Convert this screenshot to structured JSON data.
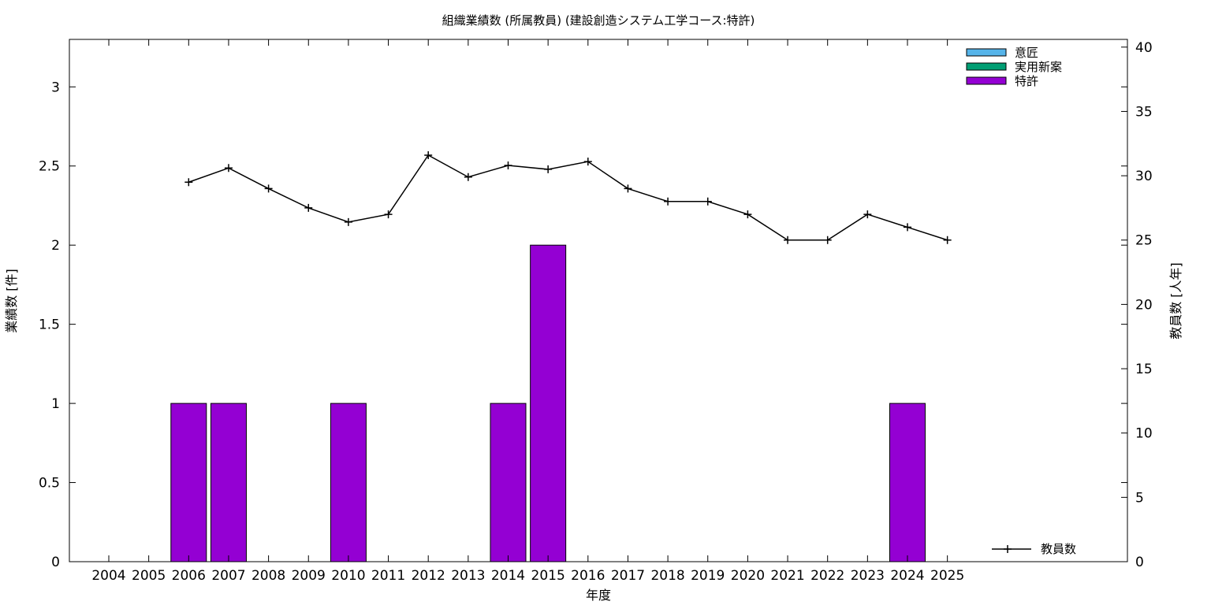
{
  "chart_data": {
    "type": "bar",
    "title": "組織業績数 (所属教員) (建設創造システム工学コース:特許)",
    "xlabel": "年度",
    "ylabel": "業績数 [件]",
    "y2label": "教員数 [人年]",
    "categories": [
      "2004",
      "2005",
      "2006",
      "2007",
      "2008",
      "2009",
      "2010",
      "2011",
      "2012",
      "2013",
      "2014",
      "2015",
      "2016",
      "2017",
      "2018",
      "2019",
      "2020",
      "2021",
      "2022",
      "2023",
      "2024",
      "2025"
    ],
    "ylim": [
      0,
      3.3
    ],
    "y2lim": [
      0,
      40.6
    ],
    "yticks": [
      "0",
      "0.5",
      "1",
      "1.5",
      "2",
      "2.5",
      "3"
    ],
    "y2ticks": [
      "0",
      "5",
      "10",
      "15",
      "20",
      "25",
      "30",
      "35",
      "40"
    ],
    "series": [
      {
        "name": "意匠",
        "type": "bar",
        "color": "#56b4e9",
        "values": [
          0,
          0,
          0,
          0,
          0,
          0,
          0,
          0,
          0,
          0,
          0,
          0,
          0,
          0,
          0,
          0,
          0,
          0,
          0,
          0,
          0,
          0
        ]
      },
      {
        "name": "実用新案",
        "type": "bar",
        "color": "#009e73",
        "values": [
          0,
          0,
          0,
          0,
          0,
          0,
          0,
          0,
          0,
          0,
          0,
          0,
          0,
          0,
          0,
          0,
          0,
          0,
          0,
          0,
          0,
          0
        ]
      },
      {
        "name": "特許",
        "type": "bar",
        "color": "#9400d3",
        "values": [
          0,
          0,
          1,
          1,
          0,
          0,
          1,
          0,
          0,
          0,
          1,
          2,
          0,
          0,
          0,
          0,
          0,
          0,
          0,
          0,
          1,
          0
        ]
      },
      {
        "name": "教員数",
        "type": "line",
        "axis": "right",
        "color": "#000000",
        "values": [
          null,
          null,
          29.5,
          30.6,
          29.0,
          27.5,
          26.4,
          27.0,
          31.6,
          29.9,
          30.8,
          30.5,
          31.1,
          29.0,
          28.0,
          28.0,
          27.0,
          25.0,
          25.0,
          27.0,
          26.0,
          25.0
        ]
      }
    ],
    "grid": false,
    "legend_position": "top-right"
  }
}
